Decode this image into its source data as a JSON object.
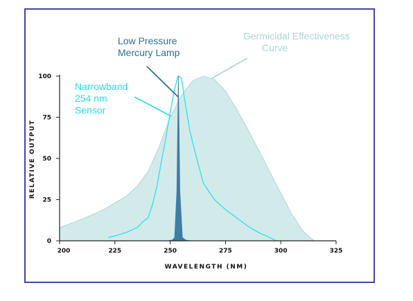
{
  "chart_data": {
    "type": "area",
    "xlabel": "WAVELENGTH (NM)",
    "ylabel": "RELATIVE OUTPUT",
    "xlim": [
      200,
      325
    ],
    "ylim": [
      0,
      100
    ],
    "x_ticks": [
      200,
      225,
      250,
      275,
      300,
      325
    ],
    "y_ticks": [
      0,
      25,
      50,
      75,
      100
    ],
    "grid": false,
    "annotations": [
      {
        "text": "Germicidal Effectiveness",
        "color": "#a9d4d8"
      },
      {
        "text": "Curve",
        "color": "#a9d4d8"
      },
      {
        "text": "Low Pressure",
        "color": "#2e6f95"
      },
      {
        "text": "Mercury Lamp",
        "color": "#2e6f95"
      },
      {
        "text": "Narrowband",
        "color": "#22e0e6"
      },
      {
        "text": "254 nm",
        "color": "#22e0e6"
      },
      {
        "text": "Sensor",
        "color": "#22e0e6"
      }
    ],
    "series": [
      {
        "color": "#d3eaeb",
        "stroke": "#aed6da",
        "points": [
          [
            200,
            8
          ],
          [
            210,
            13
          ],
          [
            220,
            19
          ],
          [
            230,
            27
          ],
          [
            235,
            33
          ],
          [
            240,
            42
          ],
          [
            245,
            57
          ],
          [
            250,
            75
          ],
          [
            255,
            88
          ],
          [
            260,
            97
          ],
          [
            265,
            100
          ],
          [
            270,
            98
          ],
          [
            275,
            91
          ],
          [
            280,
            80
          ],
          [
            285,
            68
          ],
          [
            290,
            55
          ],
          [
            295,
            42
          ],
          [
            300,
            29
          ],
          [
            305,
            16
          ],
          [
            310,
            6
          ],
          [
            315,
            0
          ]
        ]
      },
      {
        "color": "#33e3e6",
        "points": [
          [
            222,
            2
          ],
          [
            225,
            3
          ],
          [
            230,
            5
          ],
          [
            235,
            8
          ],
          [
            238,
            12
          ],
          [
            240,
            14
          ],
          [
            242,
            22
          ],
          [
            244,
            33
          ],
          [
            246,
            48
          ],
          [
            248,
            62
          ],
          [
            250,
            78
          ],
          [
            252,
            92
          ],
          [
            253.5,
            100
          ],
          [
            255,
            99
          ],
          [
            257,
            82
          ],
          [
            259,
            66
          ],
          [
            262,
            50
          ],
          [
            265,
            35
          ],
          [
            270,
            25
          ],
          [
            275,
            19
          ],
          [
            280,
            14
          ],
          [
            285,
            9
          ],
          [
            290,
            5
          ],
          [
            295,
            2
          ],
          [
            298,
            0
          ]
        ]
      },
      {
        "color": "#3d7ea3",
        "points": [
          [
            249,
            0
          ],
          [
            251,
            0.5
          ],
          [
            252,
            2
          ],
          [
            253,
            30
          ],
          [
            253.7,
            100
          ],
          [
            254.4,
            30
          ],
          [
            255.5,
            2
          ],
          [
            257,
            0.5
          ],
          [
            259,
            0
          ]
        ]
      }
    ]
  }
}
